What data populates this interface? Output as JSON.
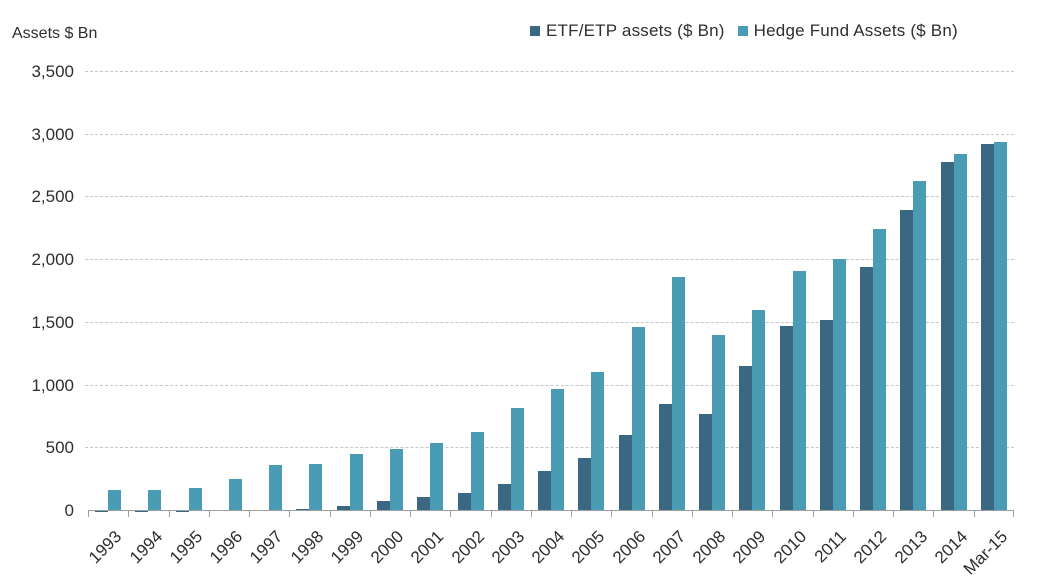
{
  "chart_data": {
    "type": "bar",
    "title": "",
    "xlabel": "",
    "ylabel": "Assets $ Bn",
    "ylim": [
      0,
      3500
    ],
    "ytick_step": 500,
    "ytick_labels": [
      "0",
      "500",
      "1,000",
      "1,500",
      "2,000",
      "2,500",
      "3,000",
      "3,500"
    ],
    "grid": "horizontal-dashed",
    "legend_position": "top-right",
    "categories": [
      "1993",
      "1994",
      "1995",
      "1996",
      "1997",
      "1998",
      "1999",
      "2000",
      "2001",
      "2002",
      "2003",
      "2004",
      "2005",
      "2006",
      "2007",
      "2008",
      "2009",
      "2010",
      "2011",
      "2012",
      "2013",
      "2014",
      "Mar-15"
    ],
    "series": [
      {
        "name": "ETF/ETP assets ($ Bn)",
        "color": "#3a6782",
        "values": [
          1,
          1,
          2,
          5,
          8,
          18,
          40,
          79,
          109,
          146,
          218,
          319,
          426,
          603,
          851,
          774,
          1156,
          1478,
          1526,
          1949,
          2398,
          2784,
          2926
        ]
      },
      {
        "name": "Hedge Fund Assets ($ Bn)",
        "color": "#4a9bb4",
        "values": [
          168,
          167,
          186,
          257,
          368,
          375,
          456,
          491,
          539,
          626,
          820,
          973,
          1105,
          1465,
          1868,
          1407,
          1600,
          1917,
          2008,
          2252,
          2628,
          2845,
          2939
        ]
      }
    ],
    "axis_color": "#9e9e9e",
    "gridline_color": "#c6c6c6",
    "text_color": "#2e2e2e"
  }
}
